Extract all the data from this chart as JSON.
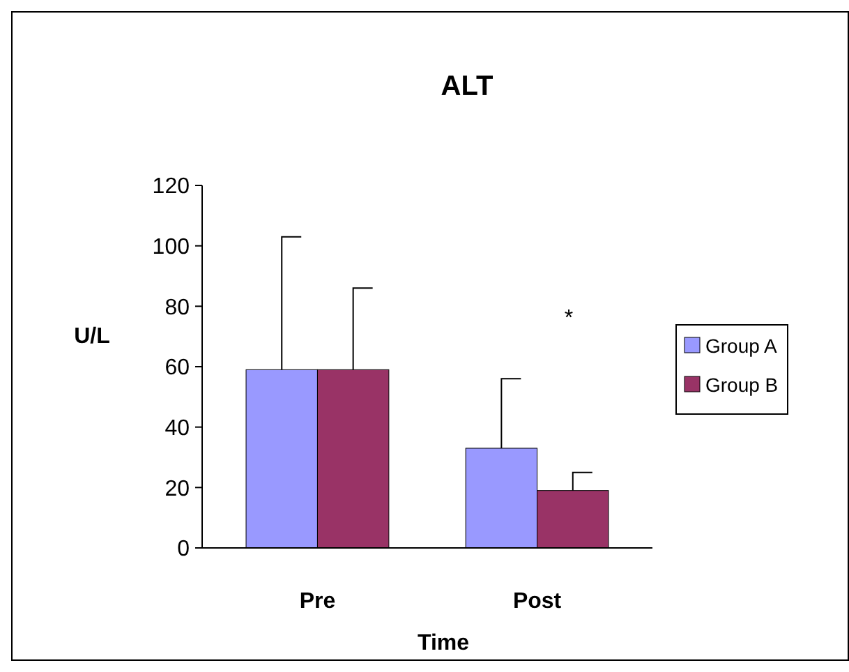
{
  "chart_data": {
    "type": "bar",
    "title": "ALT",
    "xlabel": "Time",
    "ylabel": "U/L",
    "categories": [
      "Pre",
      "Post"
    ],
    "series": [
      {
        "name": "Group A",
        "color": "#9999ff",
        "values": [
          59,
          33
        ],
        "errors": [
          [
            59,
            103
          ],
          [
            33,
            56
          ]
        ]
      },
      {
        "name": "Group B",
        "color": "#993366",
        "values": [
          59,
          19
        ],
        "errors": [
          [
            59,
            86
          ],
          [
            19,
            25
          ]
        ]
      }
    ],
    "ylim": [
      0,
      120
    ],
    "yticks": [
      0,
      20,
      40,
      60,
      80,
      100,
      120
    ],
    "grid": false,
    "legend": "right",
    "annotations": [
      "*"
    ]
  }
}
